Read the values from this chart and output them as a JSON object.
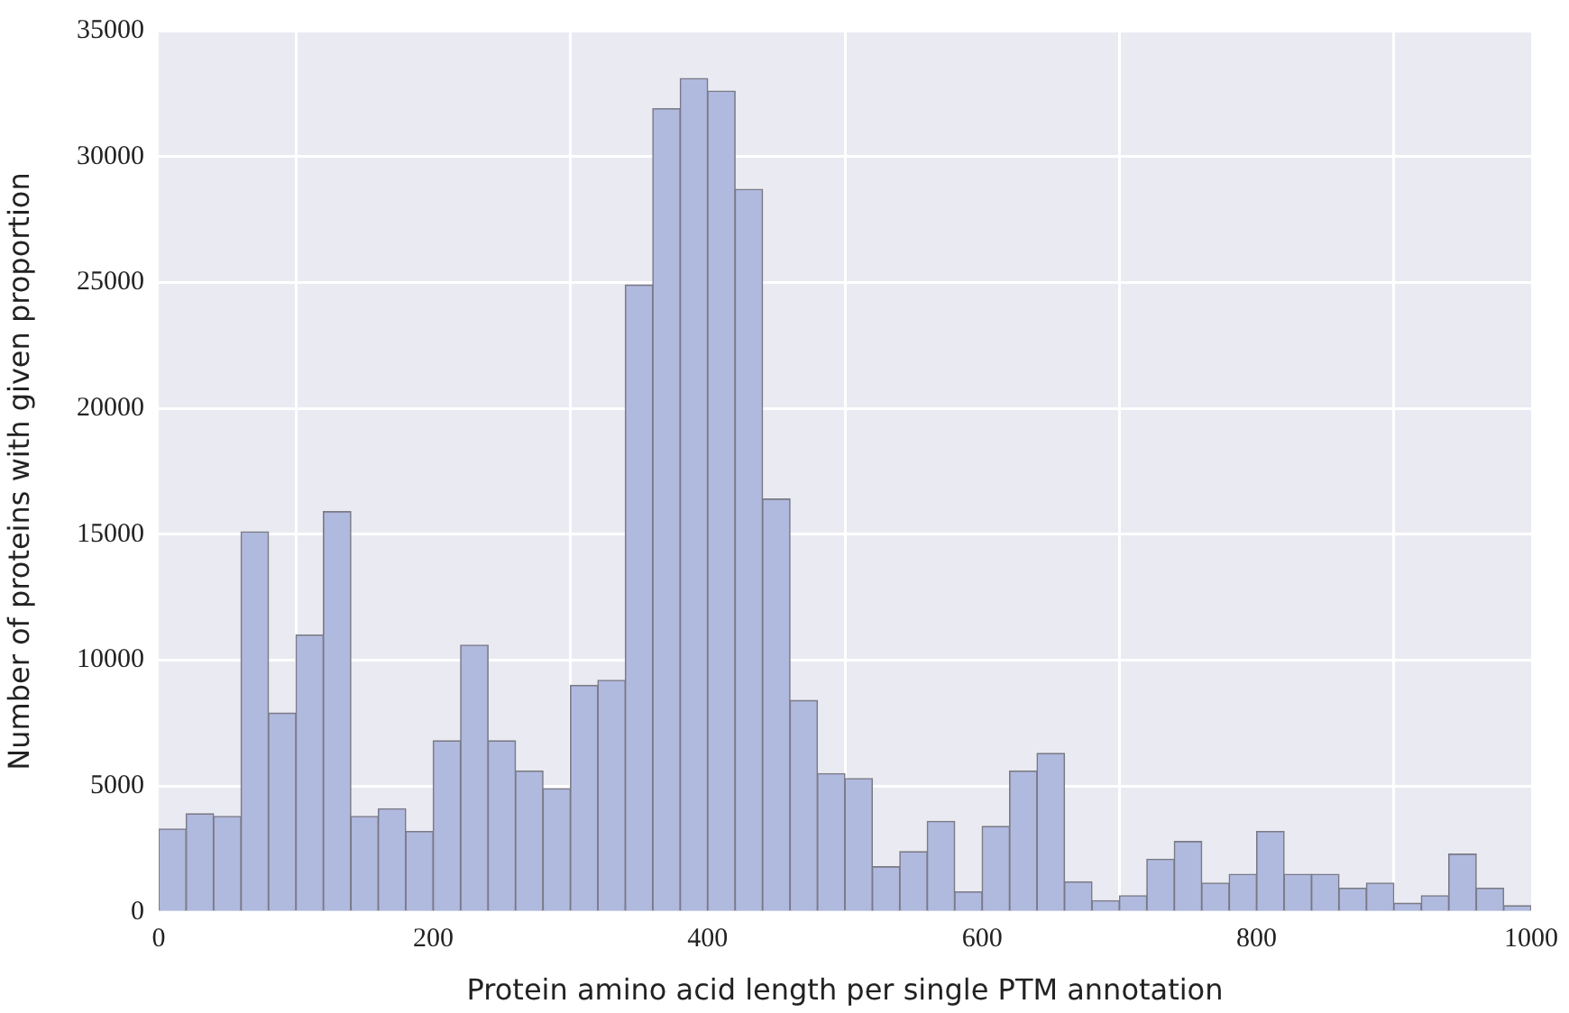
{
  "chart_data": {
    "type": "histogram",
    "xlabel": "Protein amino acid length per single PTM annotation",
    "ylabel": "Number of proteins with given proportion",
    "bins": [
      0,
      20,
      40,
      60,
      80,
      100,
      120,
      140,
      160,
      180,
      200,
      220,
      240,
      260,
      280,
      300,
      320,
      340,
      360,
      380,
      400,
      420,
      440,
      460,
      480,
      500,
      520,
      540,
      560,
      580,
      600,
      620,
      640,
      660,
      680,
      700,
      720,
      740,
      760,
      780,
      800,
      820,
      840,
      860,
      880,
      900,
      920,
      940,
      960,
      980,
      1000
    ],
    "values": [
      3300,
      3900,
      3800,
      15100,
      7900,
      11000,
      15900,
      3800,
      4100,
      3200,
      6800,
      10600,
      6800,
      5600,
      4900,
      9000,
      9200,
      24900,
      31900,
      33100,
      32600,
      28700,
      16400,
      8400,
      5500,
      5300,
      1800,
      2400,
      3600,
      800,
      3400,
      5600,
      6300,
      1200,
      450,
      650,
      2100,
      2800,
      1150,
      1500,
      3200,
      1500,
      1500,
      950,
      1150,
      350,
      650,
      2300,
      950,
      250
    ],
    "color": "#b0b9de",
    "xlim": [
      0,
      1000
    ],
    "xticks": [
      0,
      200,
      400,
      600,
      800,
      1000
    ],
    "ylim": [
      0,
      35000
    ],
    "yticks": [
      0,
      5000,
      10000,
      15000,
      20000,
      25000,
      30000,
      35000
    ],
    "grid": true,
    "legend": false
  }
}
